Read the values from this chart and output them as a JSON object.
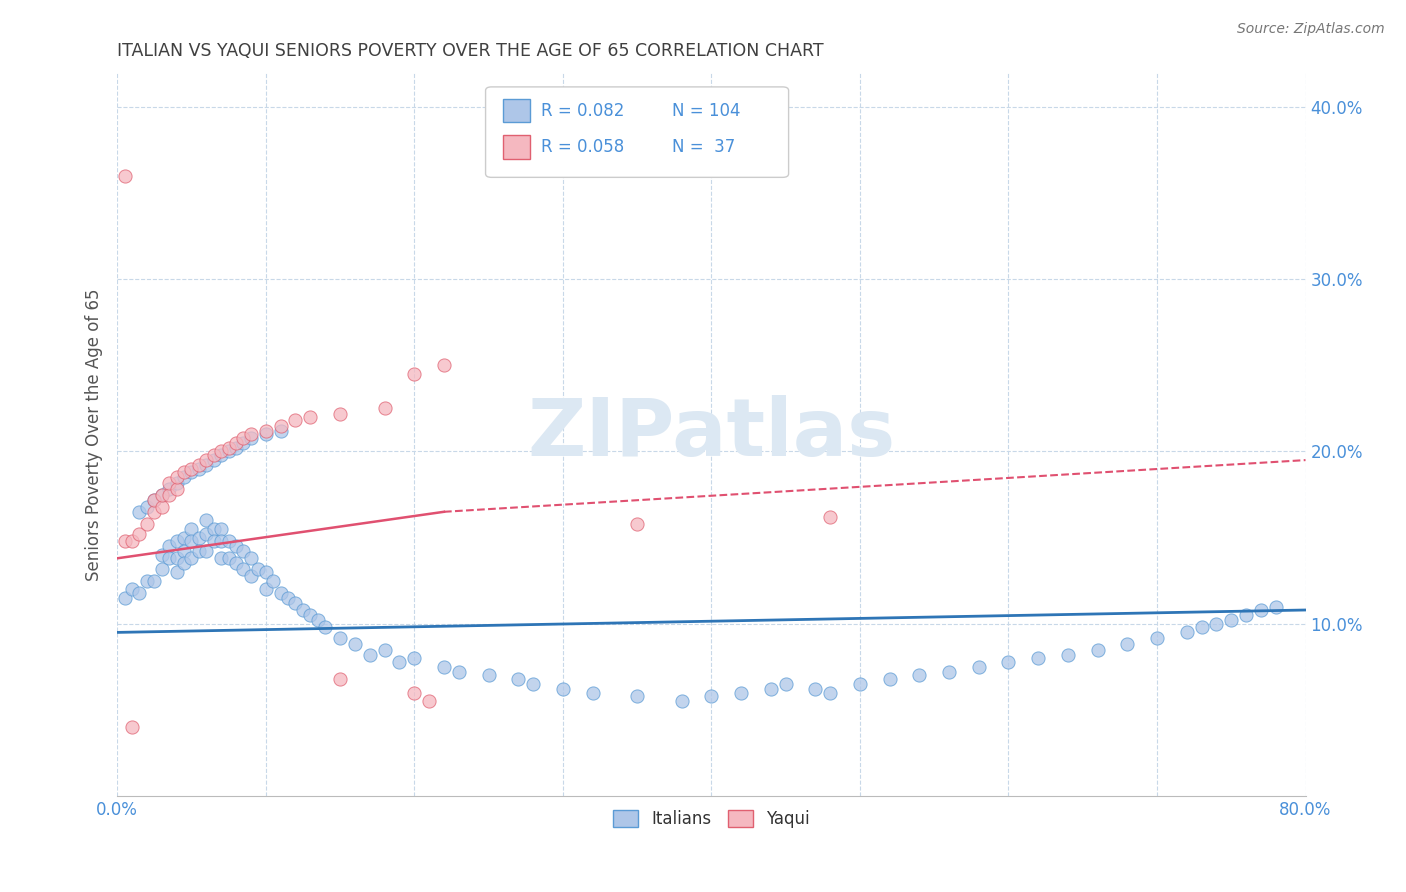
{
  "title": "ITALIAN VS YAQUI SENIORS POVERTY OVER THE AGE OF 65 CORRELATION CHART",
  "source": "Source: ZipAtlas.com",
  "ylabel": "Seniors Poverty Over the Age of 65",
  "xlim": [
    0.0,
    0.8
  ],
  "ylim": [
    0.0,
    0.42
  ],
  "xtick_positions": [
    0.0,
    0.1,
    0.2,
    0.3,
    0.4,
    0.5,
    0.6,
    0.7,
    0.8
  ],
  "xticklabels": [
    "0.0%",
    "",
    "",
    "",
    "",
    "",
    "",
    "",
    "80.0%"
  ],
  "ytick_positions": [
    0.1,
    0.2,
    0.3,
    0.4
  ],
  "ytick_labels": [
    "10.0%",
    "20.0%",
    "30.0%",
    "40.0%"
  ],
  "italian_R": 0.082,
  "italian_N": 104,
  "yaqui_R": 0.058,
  "yaqui_N": 37,
  "italian_color": "#aec6e8",
  "yaqui_color": "#f5b8c0",
  "italian_edge_color": "#5b9bd5",
  "yaqui_edge_color": "#e06070",
  "italian_line_color": "#2e75b6",
  "yaqui_line_color": "#e05070",
  "watermark": "ZIPatlas",
  "watermark_color": "#dce8f3",
  "background_color": "#ffffff",
  "grid_color": "#c8d8e8",
  "title_color": "#404040",
  "tick_label_color": "#4a90d9",
  "italian_x": [
    0.005,
    0.01,
    0.015,
    0.02,
    0.025,
    0.03,
    0.03,
    0.035,
    0.035,
    0.04,
    0.04,
    0.04,
    0.045,
    0.045,
    0.045,
    0.05,
    0.05,
    0.05,
    0.055,
    0.055,
    0.06,
    0.06,
    0.06,
    0.065,
    0.065,
    0.07,
    0.07,
    0.07,
    0.075,
    0.075,
    0.08,
    0.08,
    0.085,
    0.085,
    0.09,
    0.09,
    0.095,
    0.1,
    0.1,
    0.105,
    0.11,
    0.115,
    0.12,
    0.125,
    0.13,
    0.135,
    0.14,
    0.15,
    0.16,
    0.17,
    0.18,
    0.19,
    0.2,
    0.22,
    0.23,
    0.25,
    0.27,
    0.28,
    0.3,
    0.32,
    0.35,
    0.38,
    0.4,
    0.42,
    0.44,
    0.45,
    0.47,
    0.48,
    0.5,
    0.52,
    0.54,
    0.56,
    0.58,
    0.6,
    0.62,
    0.64,
    0.66,
    0.68,
    0.7,
    0.72,
    0.73,
    0.74,
    0.75,
    0.76,
    0.77,
    0.78,
    0.015,
    0.02,
    0.025,
    0.03,
    0.035,
    0.04,
    0.045,
    0.05,
    0.055,
    0.06,
    0.065,
    0.07,
    0.075,
    0.08,
    0.085,
    0.09,
    0.1,
    0.11
  ],
  "italian_y": [
    0.115,
    0.12,
    0.118,
    0.125,
    0.125,
    0.14,
    0.132,
    0.145,
    0.138,
    0.148,
    0.138,
    0.13,
    0.15,
    0.142,
    0.135,
    0.155,
    0.148,
    0.138,
    0.15,
    0.142,
    0.16,
    0.152,
    0.142,
    0.155,
    0.148,
    0.155,
    0.148,
    0.138,
    0.148,
    0.138,
    0.145,
    0.135,
    0.142,
    0.132,
    0.138,
    0.128,
    0.132,
    0.13,
    0.12,
    0.125,
    0.118,
    0.115,
    0.112,
    0.108,
    0.105,
    0.102,
    0.098,
    0.092,
    0.088,
    0.082,
    0.085,
    0.078,
    0.08,
    0.075,
    0.072,
    0.07,
    0.068,
    0.065,
    0.062,
    0.06,
    0.058,
    0.055,
    0.058,
    0.06,
    0.062,
    0.065,
    0.062,
    0.06,
    0.065,
    0.068,
    0.07,
    0.072,
    0.075,
    0.078,
    0.08,
    0.082,
    0.085,
    0.088,
    0.092,
    0.095,
    0.098,
    0.1,
    0.102,
    0.105,
    0.108,
    0.11,
    0.165,
    0.168,
    0.172,
    0.175,
    0.178,
    0.182,
    0.185,
    0.188,
    0.19,
    0.192,
    0.195,
    0.198,
    0.2,
    0.202,
    0.205,
    0.208,
    0.21,
    0.212
  ],
  "yaqui_x": [
    0.005,
    0.01,
    0.015,
    0.02,
    0.025,
    0.025,
    0.03,
    0.03,
    0.035,
    0.035,
    0.04,
    0.04,
    0.045,
    0.05,
    0.055,
    0.06,
    0.065,
    0.07,
    0.075,
    0.08,
    0.085,
    0.09,
    0.1,
    0.11,
    0.12,
    0.13,
    0.15,
    0.18,
    0.2,
    0.22,
    0.35,
    0.48,
    0.005,
    0.01,
    0.15,
    0.2,
    0.21
  ],
  "yaqui_y": [
    0.148,
    0.148,
    0.152,
    0.158,
    0.165,
    0.172,
    0.168,
    0.175,
    0.175,
    0.182,
    0.178,
    0.185,
    0.188,
    0.19,
    0.192,
    0.195,
    0.198,
    0.2,
    0.202,
    0.205,
    0.208,
    0.21,
    0.212,
    0.215,
    0.218,
    0.22,
    0.222,
    0.225,
    0.245,
    0.25,
    0.158,
    0.162,
    0.36,
    0.04,
    0.068,
    0.06,
    0.055
  ]
}
